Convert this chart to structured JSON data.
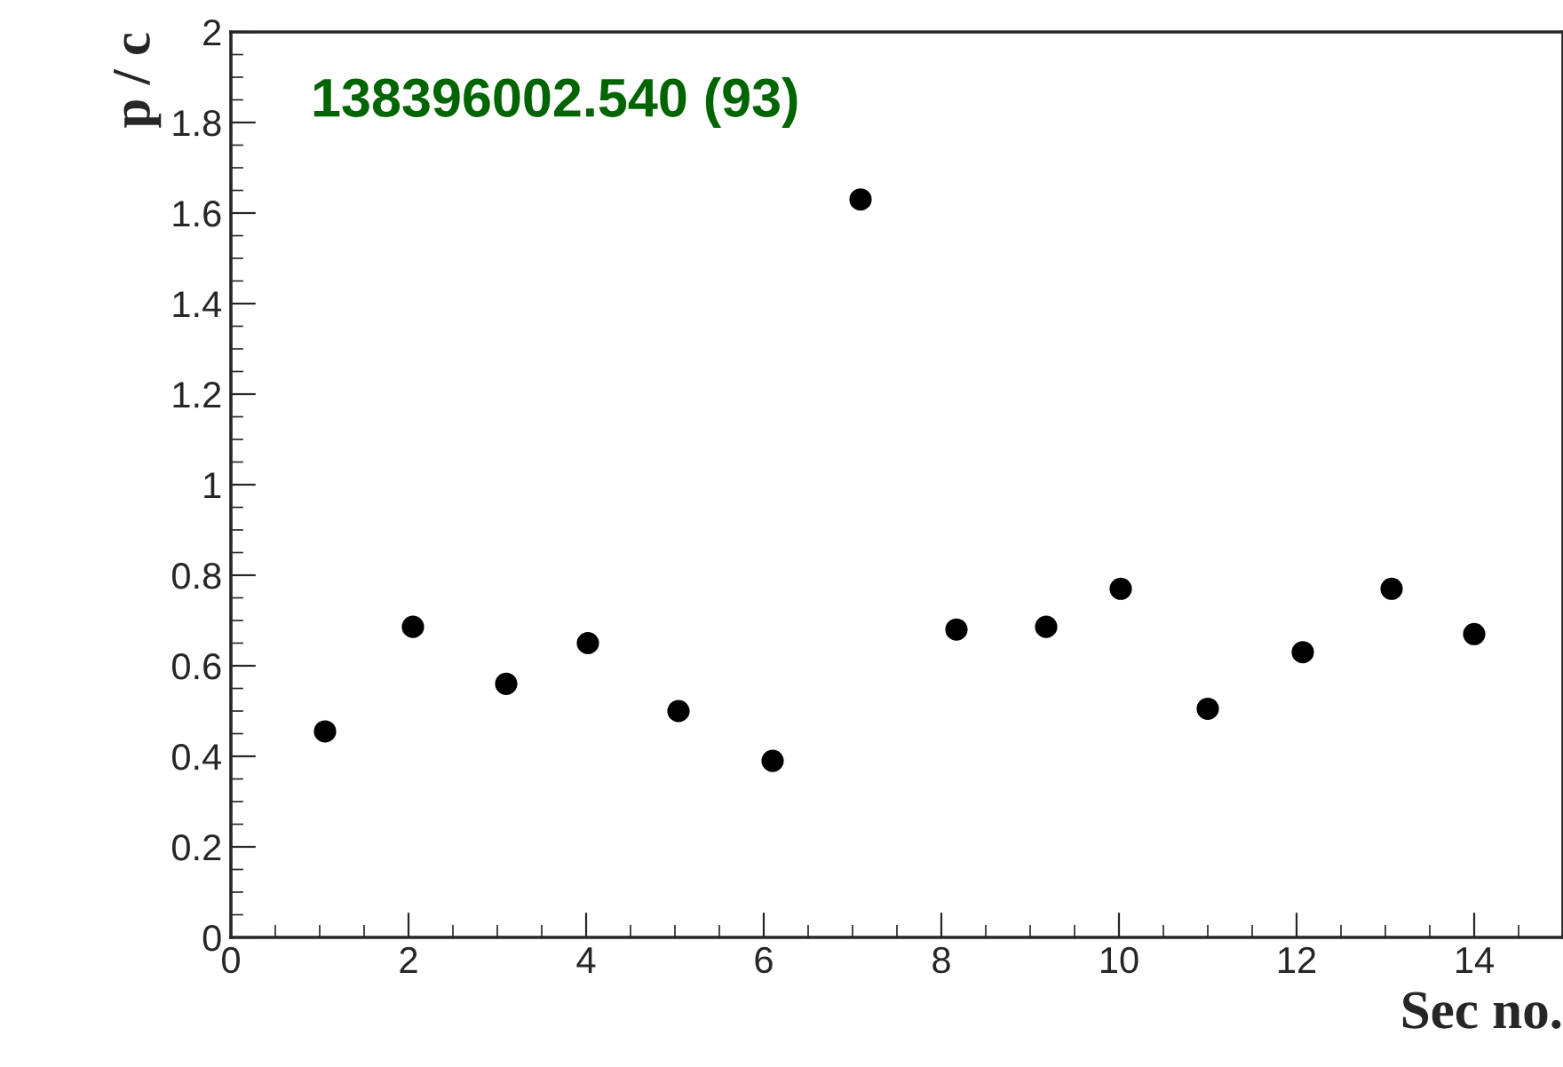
{
  "chart_data": {
    "type": "scatter",
    "xlabel": "Sec no.",
    "ylabel": "p / c",
    "annotations": [
      "138396002.540 (93)"
    ],
    "x": [
      1.06,
      2.05,
      3.1,
      4.02,
      5.04,
      6.1,
      7.09,
      8.17,
      9.18,
      10.02,
      11.0,
      12.07,
      13.07,
      14.0
    ],
    "series": [
      {
        "color": "#000000",
        "values": [
          0.455,
          0.686,
          0.56,
          0.65,
          0.5,
          0.39,
          1.63,
          0.68,
          0.686,
          0.77,
          0.505,
          0.63,
          0.77,
          0.67
        ]
      }
    ],
    "xlim": [
      0,
      15
    ],
    "xticks": [
      0,
      2,
      4,
      6,
      8,
      10,
      12,
      14
    ],
    "ylim": [
      0,
      2
    ],
    "yticks": [
      0,
      0.2,
      0.4,
      0.6,
      0.8,
      1,
      1.2,
      1.4,
      1.6,
      1.8,
      2
    ],
    "marker": "circle",
    "grid": false,
    "legend": false
  }
}
